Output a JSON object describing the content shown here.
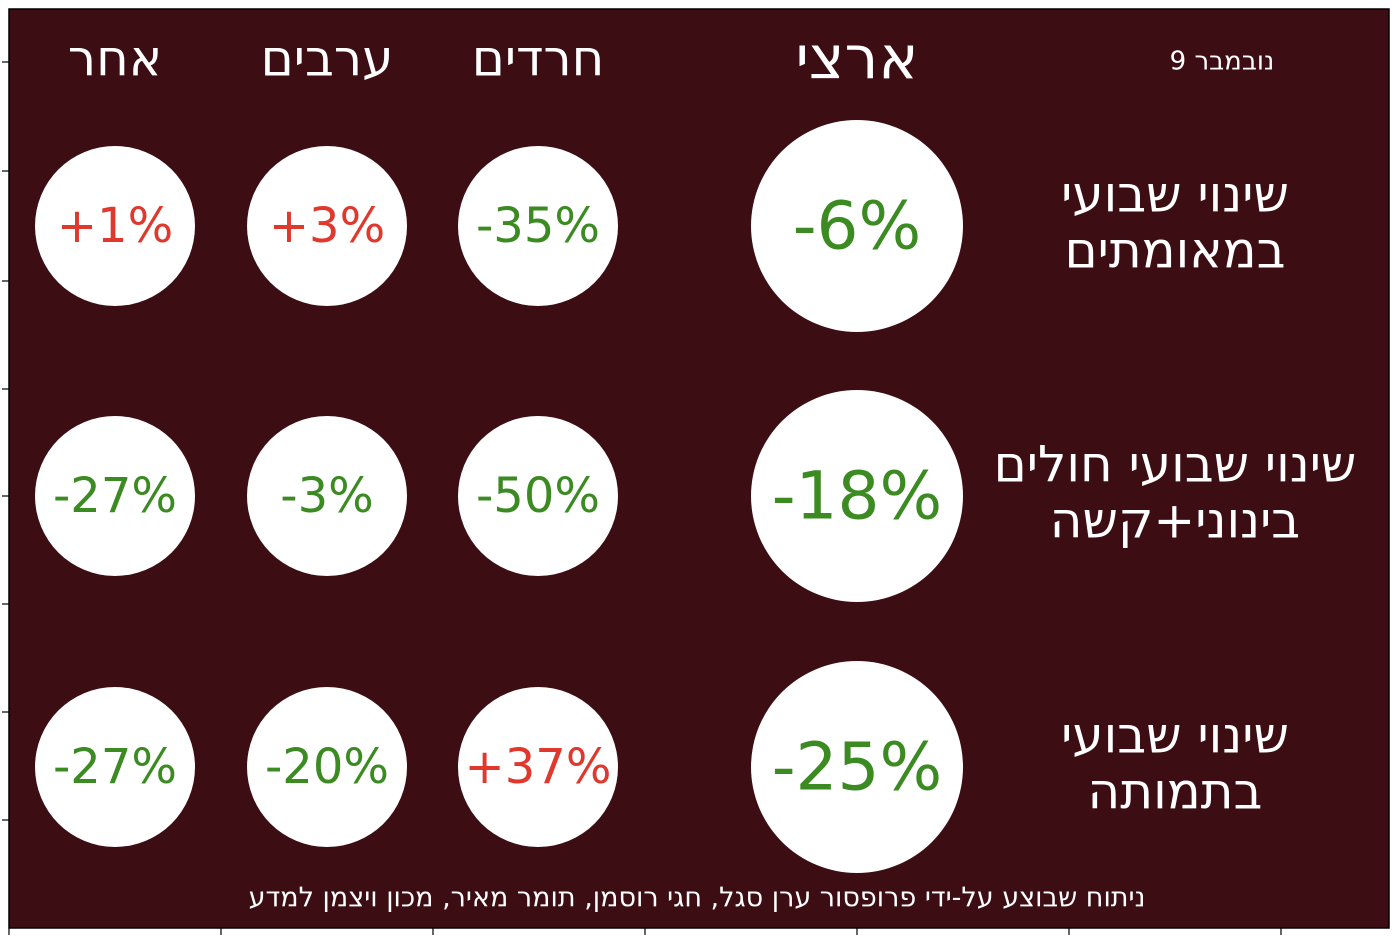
{
  "date_label": "נובמבר 9",
  "columns": [
    "ארצי",
    "חרדים",
    "ערבים",
    "אחר"
  ],
  "rows": [
    {
      "label_lines": [
        "שינוי שבועי",
        "במאומתים"
      ],
      "values": [
        "-6%",
        "-35%",
        "+3%",
        "+1%"
      ]
    },
    {
      "label_lines": [
        "שינוי שבועי חולים",
        "בינוני+קשה"
      ],
      "values": [
        "-18%",
        "-50%",
        "-3%",
        "-27%"
      ]
    },
    {
      "label_lines": [
        "שינוי שבועי",
        "בתמותה"
      ],
      "values": [
        "-25%",
        "+37%",
        "-20%",
        "-27%"
      ]
    }
  ],
  "footer": "ניתוח שבוצע על-ידי פרופסור ערן סגל, חגי רוסמן, תומר מאיר, מכון ויצמן למדע",
  "colors": {
    "background": "#3c0e14",
    "circle": "#ffffff",
    "text": "#ffffff",
    "decrease": "#3b8a22",
    "increase": "#e0382c"
  },
  "chart_data": {
    "type": "table",
    "columns": [
      "ארצי",
      "חרדים",
      "ערבים",
      "אחר"
    ],
    "rows": [
      "שינוי שבועי במאומתים",
      "שינוי שבועי חולים בינוני+קשה",
      "שינוי שבועי בתמותה"
    ],
    "values_percent": [
      [
        -6,
        -35,
        3,
        1
      ],
      [
        -18,
        -50,
        -3,
        -27
      ],
      [
        -25,
        37,
        -20,
        -27
      ]
    ],
    "grid": false
  }
}
